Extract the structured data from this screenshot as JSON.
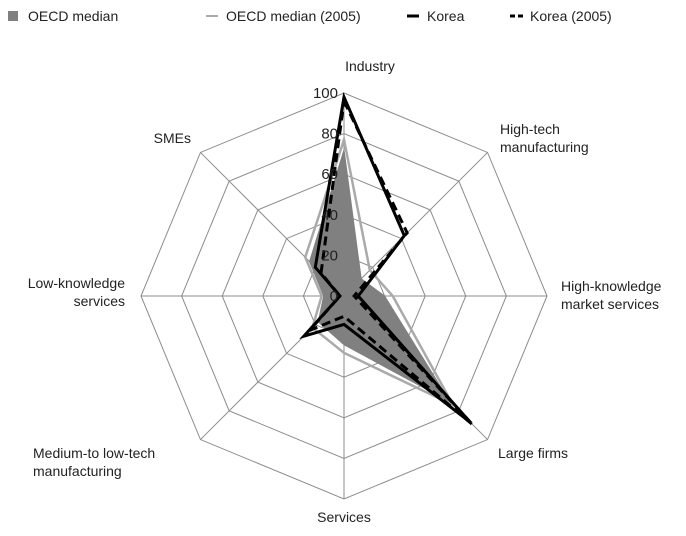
{
  "chart_data": {
    "type": "radar",
    "title": "",
    "categories": [
      "Industry",
      "High-tech manufacturing",
      "High-knowledge market services",
      "Large firms",
      "Services",
      "Medium-to low-tech manufacturing",
      "Low-knowledge services",
      "SMEs"
    ],
    "category_label_lines": [
      [
        "Industry"
      ],
      [
        "High-tech",
        "manufacturing"
      ],
      [
        "High-knowledge",
        "market services"
      ],
      [
        "Large firms"
      ],
      [
        "Services"
      ],
      [
        "Medium-to low-tech",
        "manufacturing"
      ],
      [
        "Low-knowledge",
        "services"
      ],
      [
        "SMEs"
      ]
    ],
    "rlim": [
      0,
      100
    ],
    "ticks": [
      "0",
      "20",
      "40",
      "60",
      "80",
      "100"
    ],
    "tick_values": [
      0,
      20,
      40,
      60,
      80,
      100
    ],
    "grid": true,
    "legend_position": "top",
    "series": [
      {
        "name": "OECD median",
        "style": "filled",
        "color": "#808080",
        "values": [
          72,
          12,
          20,
          74,
          24,
          18,
          10,
          24
        ]
      },
      {
        "name": "OECD median (2005)",
        "style": "solid-line",
        "color": "#aaaaaa",
        "values": [
          77,
          18,
          24,
          76,
          28,
          22,
          11,
          27
        ]
      },
      {
        "name": "Korea",
        "style": "solid-line",
        "color": "#000000",
        "values": [
          98,
          42,
          7,
          88,
          14,
          28,
          2,
          20
        ]
      },
      {
        "name": "Korea (2005)",
        "style": "dashed-line",
        "color": "#000000",
        "values": [
          96,
          44,
          5,
          90,
          10,
          24,
          2,
          16
        ]
      }
    ]
  }
}
